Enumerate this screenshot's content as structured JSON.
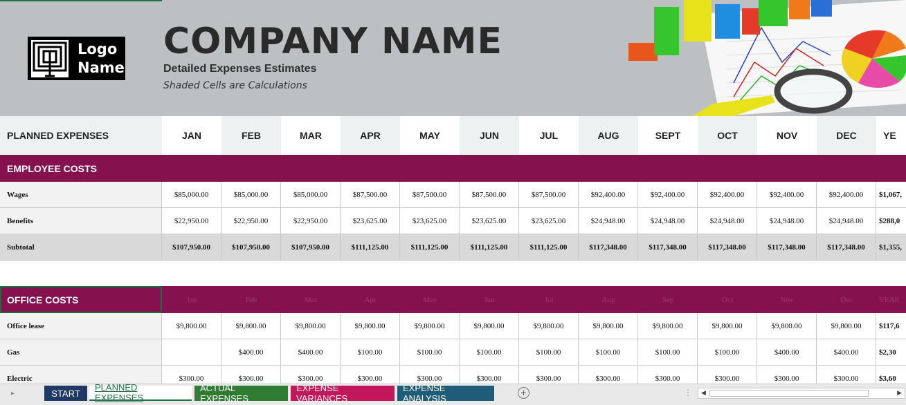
{
  "header": {
    "logo_text_line1": "Logo",
    "logo_text_line2": "Name",
    "company_name": "COMPANY NAME",
    "subtitle": "Detailed Expenses Estimates",
    "note": "Shaded Cells are Calculations"
  },
  "columns": {
    "first": "PLANNED EXPENSES",
    "months": [
      "JAN",
      "FEB",
      "MAR",
      "APR",
      "MAY",
      "JUN",
      "JUL",
      "AUG",
      "SEPT",
      "OCT",
      "NOV",
      "DEC"
    ],
    "year": "YE"
  },
  "employee_costs": {
    "title": "EMPLOYEE COSTS",
    "rows": [
      {
        "label": "Wages",
        "values": [
          "$85,000.00",
          "$85,000.00",
          "$85,000.00",
          "$87,500.00",
          "$87,500.00",
          "$87,500.00",
          "$87,500.00",
          "$92,400.00",
          "$92,400.00",
          "$92,400.00",
          "$92,400.00",
          "$92,400.00"
        ],
        "year": "$1,067,"
      },
      {
        "label": "Benefits",
        "values": [
          "$22,950.00",
          "$22,950.00",
          "$22,950.00",
          "$23,625.00",
          "$23,625.00",
          "$23,625.00",
          "$23,625.00",
          "$24,948.00",
          "$24,948.00",
          "$24,948.00",
          "$24,948.00",
          "$24,948.00"
        ],
        "year": "$288,0"
      }
    ],
    "subtotal": {
      "label": "Subtotal",
      "values": [
        "$107,950.00",
        "$107,950.00",
        "$107,950.00",
        "$111,125.00",
        "$111,125.00",
        "$111,125.00",
        "$111,125.00",
        "$117,348.00",
        "$117,348.00",
        "$117,348.00",
        "$117,348.00",
        "$117,348.00"
      ],
      "year": "$1,355,"
    }
  },
  "office_costs": {
    "title": "OFFICE COSTS",
    "ghost_headers": [
      "Jan",
      "Feb",
      "Mar",
      "Apr",
      "May",
      "Jun",
      "Jul",
      "Aug",
      "Sep",
      "Oct",
      "Nov",
      "Dec"
    ],
    "ghost_year": "YEAR",
    "rows": [
      {
        "label": "Office lease",
        "values": [
          "$9,800.00",
          "$9,800.00",
          "$9,800.00",
          "$9,800.00",
          "$9,800.00",
          "$9,800.00",
          "$9,800.00",
          "$9,800.00",
          "$9,800.00",
          "$9,800.00",
          "$9,800.00",
          "$9,800.00"
        ],
        "year": "$117,6"
      },
      {
        "label": "Gas",
        "values": [
          "",
          "$400.00",
          "$400.00",
          "$100.00",
          "$100.00",
          "$100.00",
          "$100.00",
          "$100.00",
          "$100.00",
          "$100.00",
          "$400.00",
          "$400.00"
        ],
        "year": "$2,30"
      },
      {
        "label": "Electric",
        "values": [
          "$300.00",
          "$300.00",
          "$300.00",
          "$300.00",
          "$300.00",
          "$300.00",
          "$300.00",
          "$300.00",
          "$300.00",
          "$300.00",
          "$300.00",
          "$300.00"
        ],
        "year": "$3,60"
      }
    ]
  },
  "tabs": [
    {
      "label": "START",
      "color": "#1f3864"
    },
    {
      "label": "PLANNED EXPENSES",
      "color": "#ffffff",
      "active": true
    },
    {
      "label": "ACTUAL EXPENSES",
      "color": "#2e7d32"
    },
    {
      "label": "EXPENSE VARIANCES",
      "color": "#c2185b"
    },
    {
      "label": "EXPENSE ANALYSIS",
      "color": "#1f5c7a"
    }
  ],
  "colors": {
    "section_band": "#85114f",
    "header_band": "#bcc0c3",
    "accent_green": "#217346"
  }
}
